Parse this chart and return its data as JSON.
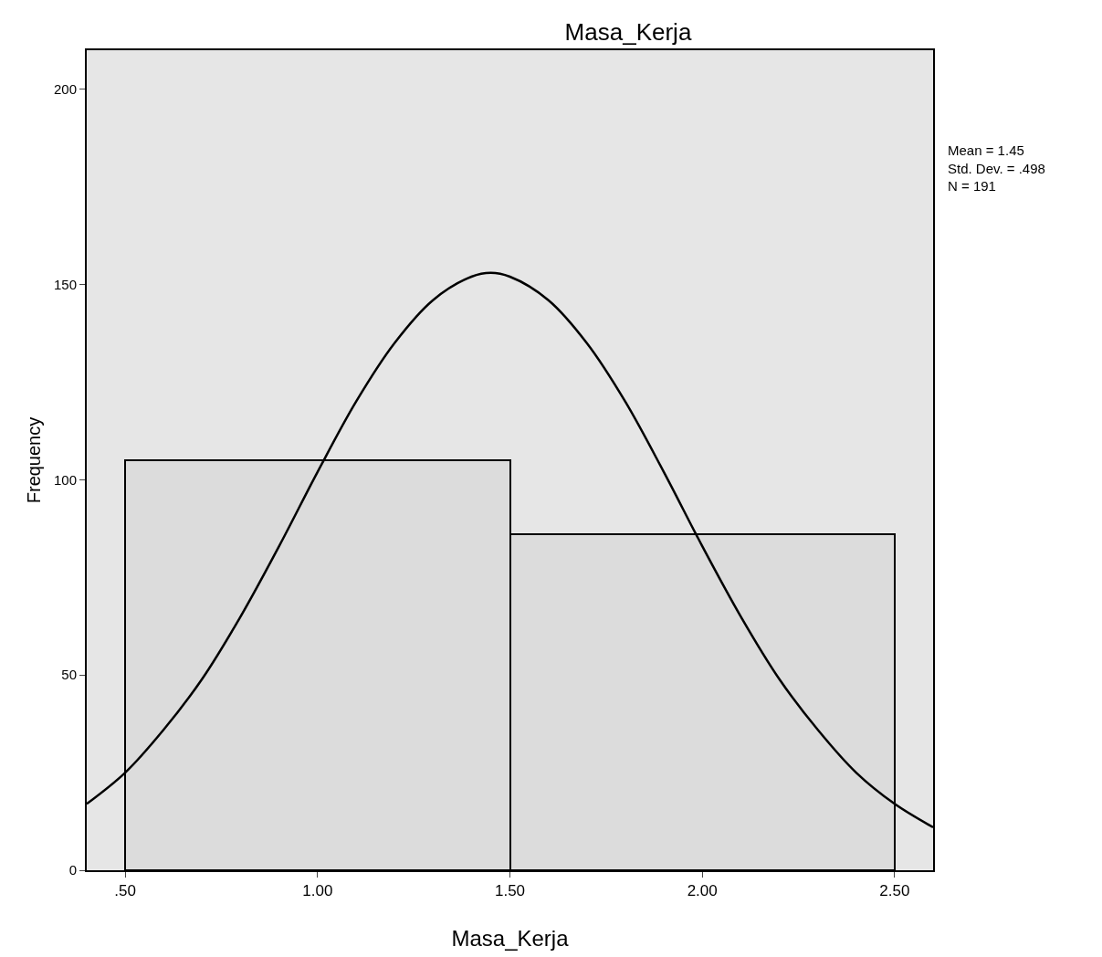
{
  "chart_data": {
    "type": "histogram",
    "title": "Masa_Kerja",
    "xlabel": "Masa_Kerja",
    "ylabel": "Frequency",
    "bins": [
      0.5,
      1.5,
      2.5
    ],
    "series": [
      {
        "color": "#dcdcdc",
        "values": [
          105,
          86
        ]
      },
      {
        "type": "line",
        "color": "#000000",
        "x": [
          0.4,
          0.5,
          0.6,
          0.7,
          0.8,
          0.9,
          1.0,
          1.1,
          1.2,
          1.3,
          1.4,
          1.45,
          1.5,
          1.6,
          1.7,
          1.8,
          1.9,
          2.0,
          2.1,
          2.2,
          2.3,
          2.4,
          2.5,
          2.6
        ],
        "values": [
          17,
          25,
          36,
          49,
          65,
          83,
          102,
          120,
          135,
          146,
          152,
          153,
          152,
          146,
          135,
          120,
          102,
          83,
          65,
          49,
          36,
          25,
          17,
          11
        ]
      }
    ],
    "xlim": [
      0.4,
      2.6
    ],
    "xticks": [
      {
        "value": 0.5,
        "label": ".50"
      },
      {
        "value": 1,
        "label": "1.00"
      },
      {
        "value": 1.5,
        "label": "1.50"
      },
      {
        "value": 2,
        "label": "2.00"
      },
      {
        "value": 2.5,
        "label": "2.50"
      }
    ],
    "ylim": [
      0,
      210
    ],
    "yticks": [
      0,
      50,
      100,
      150,
      200
    ],
    "grid": false,
    "marker": "none",
    "line_style": "solid",
    "annotations": [
      "Mean = 1.45",
      "Std. Dev. = .498",
      "N = 191"
    ]
  }
}
